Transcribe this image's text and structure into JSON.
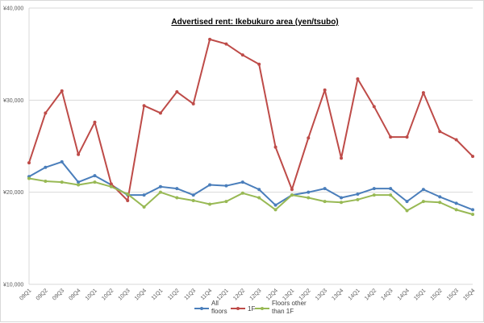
{
  "chart_data": {
    "type": "line",
    "title": "Advertised rent: Ikebukuro area (yen/tsubo)",
    "xlabel": "",
    "ylabel": "",
    "ylim": [
      10000,
      40000
    ],
    "yticks": [
      10000,
      20000,
      30000,
      40000
    ],
    "ytick_labels": [
      "¥10,000",
      "¥20,000",
      "¥30,000",
      "¥40,000"
    ],
    "grid": "horizontal",
    "legend_position": "bottom",
    "categories": [
      "09Q1",
      "09Q2",
      "09Q3",
      "09Q4",
      "10Q1",
      "10Q2",
      "10Q3",
      "10Q4",
      "11Q1",
      "11Q2",
      "11Q3",
      "11Q4",
      "12Q1",
      "12Q2",
      "12Q3",
      "12Q4",
      "13Q1",
      "13Q2",
      "13Q3",
      "13Q4",
      "14Q1",
      "14Q2",
      "14Q3",
      "14Q4",
      "15Q1",
      "15Q2",
      "15Q3",
      "15Q4"
    ],
    "series": [
      {
        "name": "All floors",
        "legend_lines": [
          "All",
          "floors"
        ],
        "color": "#4a7ebb",
        "values": [
          21700,
          22700,
          23300,
          21100,
          21800,
          20800,
          19700,
          19700,
          20600,
          20400,
          19700,
          20800,
          20700,
          21100,
          20300,
          18600,
          19700,
          20000,
          20400,
          19400,
          19800,
          20400,
          20400,
          19000,
          20300,
          19500,
          18800,
          18100
        ]
      },
      {
        "name": "1F",
        "legend_lines": [
          "1F"
        ],
        "color": "#be4b48",
        "values": [
          23200,
          28600,
          31000,
          24100,
          27600,
          20900,
          19100,
          29400,
          28600,
          30900,
          29600,
          36600,
          36100,
          34900,
          33900,
          24900,
          20300,
          25900,
          31100,
          23700,
          32300,
          29300,
          26000,
          26000,
          30800,
          26600,
          25700,
          23900
        ]
      },
      {
        "name": "Floors other than 1F",
        "legend_lines": [
          "Floors other",
          "than 1F"
        ],
        "color": "#98b954",
        "values": [
          21500,
          21200,
          21100,
          20800,
          21100,
          20600,
          19800,
          18400,
          20000,
          19400,
          19100,
          18700,
          19000,
          19900,
          19400,
          18100,
          19700,
          19400,
          19000,
          18900,
          19200,
          19700,
          19700,
          18000,
          19000,
          18900,
          18100,
          17600
        ]
      }
    ]
  }
}
